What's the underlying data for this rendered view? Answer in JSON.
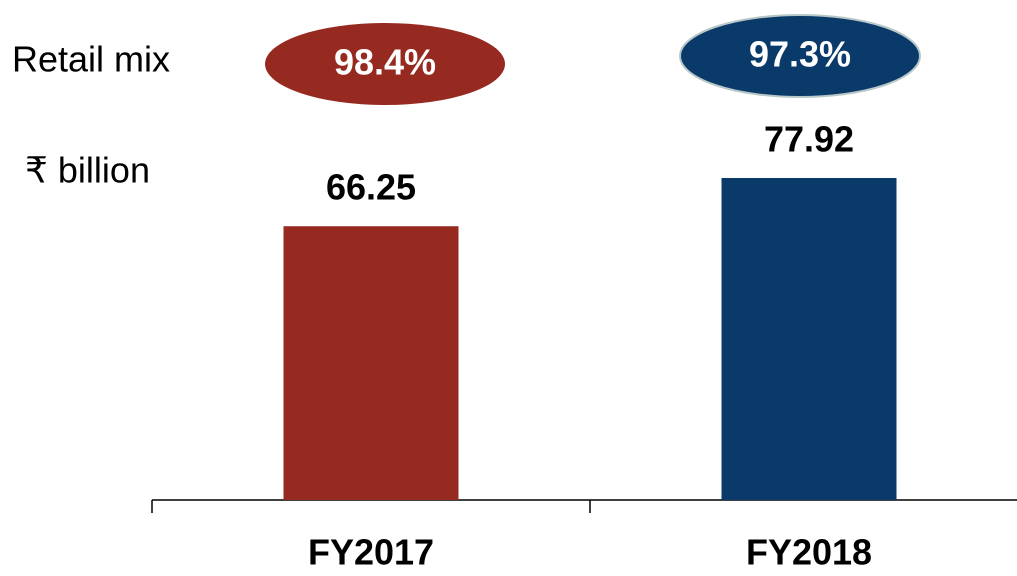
{
  "chart_data": {
    "type": "bar",
    "y_label": "₹ billion",
    "categories": [
      "FY2017",
      "FY2018"
    ],
    "values": [
      66.25,
      77.92
    ],
    "colors": [
      "#962a20",
      "#0a3a6a"
    ],
    "retail_mix": {
      "label": "Retail mix",
      "values": [
        98.4,
        97.3
      ],
      "value_labels": [
        "98.4%",
        "97.3%"
      ]
    }
  }
}
